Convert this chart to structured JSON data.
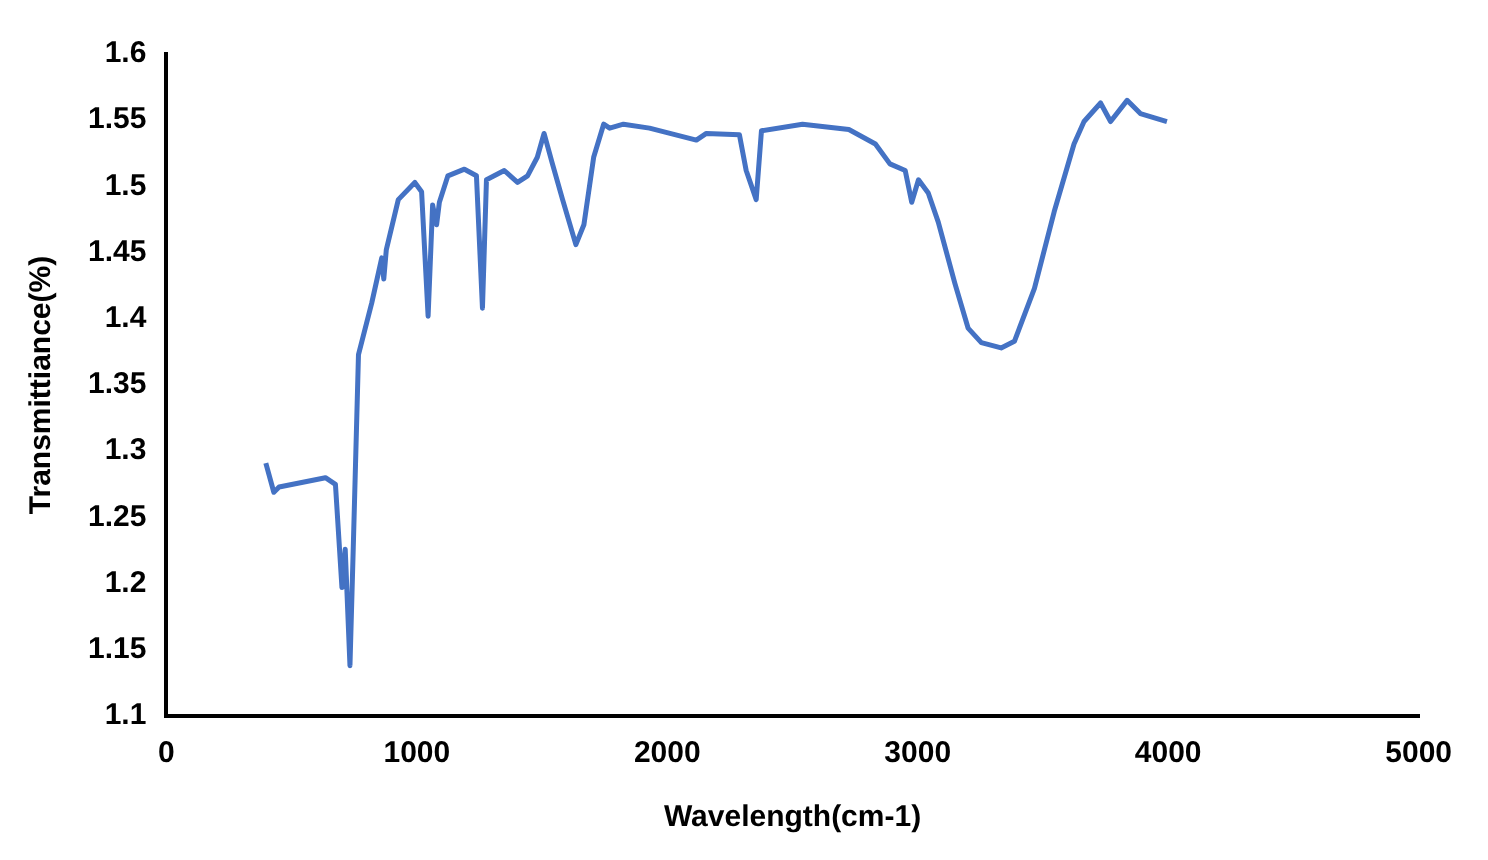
{
  "chart_data": {
    "type": "line",
    "xlabel": "Wavelength(cm-1)",
    "ylabel": "Transmittiance(%)",
    "xlim": [
      0,
      5000
    ],
    "xticks": [
      0,
      1000,
      2000,
      3000,
      4000,
      5000
    ],
    "ylim": [
      1.1,
      1.6
    ],
    "yticks": [
      1.1,
      1.15,
      1.2,
      1.25,
      1.3,
      1.35,
      1.4,
      1.45,
      1.5,
      1.55,
      1.6
    ],
    "grid": false,
    "legend": false,
    "marker": "none",
    "line_style": "solid",
    "series": [
      {
        "color": "#4472c4",
        "x": [
          397,
          429,
          450,
          635,
          675,
          701,
          714,
          733,
          746,
          767,
          820,
          860,
          868,
          878,
          926,
          992,
          1019,
          1045,
          1063,
          1079,
          1090,
          1124,
          1190,
          1238,
          1262,
          1278,
          1349,
          1402,
          1442,
          1481,
          1508,
          1540,
          1582,
          1635,
          1667,
          1706,
          1746,
          1770,
          1825,
          1929,
          2116,
          2156,
          2288,
          2315,
          2355,
          2376,
          2540,
          2725,
          2831,
          2889,
          2950,
          2976,
          3003,
          3042,
          3082,
          3148,
          3201,
          3254,
          3333,
          3386,
          3466,
          3545,
          3624,
          3664,
          3730,
          3770,
          3836,
          3889,
          3995
        ],
        "values": [
          1.291,
          1.269,
          1.273,
          1.28,
          1.275,
          1.197,
          1.226,
          1.138,
          1.226,
          1.373,
          1.412,
          1.446,
          1.43,
          1.452,
          1.49,
          1.503,
          1.496,
          1.402,
          1.486,
          1.471,
          1.488,
          1.508,
          1.513,
          1.508,
          1.408,
          1.505,
          1.512,
          1.503,
          1.508,
          1.522,
          1.54,
          1.518,
          1.49,
          1.456,
          1.471,
          1.522,
          1.547,
          1.544,
          1.547,
          1.544,
          1.535,
          1.54,
          1.539,
          1.512,
          1.49,
          1.542,
          1.547,
          1.543,
          1.532,
          1.517,
          1.512,
          1.488,
          1.505,
          1.495,
          1.473,
          1.427,
          1.393,
          1.382,
          1.378,
          1.383,
          1.423,
          1.481,
          1.532,
          1.549,
          1.563,
          1.549,
          1.565,
          1.555,
          1.549
        ]
      }
    ]
  }
}
